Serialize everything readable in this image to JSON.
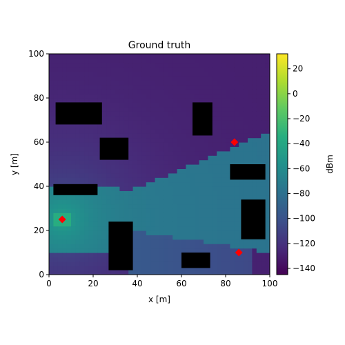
{
  "chart_data": {
    "type": "heatmap",
    "title": "Ground truth",
    "xlabel": "x [m]",
    "ylabel": "y [m]",
    "xlim": [
      0,
      100
    ],
    "ylim": [
      0,
      100
    ],
    "x_ticks": [
      0,
      20,
      40,
      60,
      80,
      100
    ],
    "y_ticks": [
      0,
      20,
      40,
      60,
      80,
      100
    ],
    "grid": false,
    "colorbar": {
      "label": "dBm",
      "colormap": "viridis",
      "range": [
        -145,
        32
      ],
      "ticks": [
        20,
        0,
        -20,
        -40,
        -60,
        -80,
        -100,
        -120,
        -140
      ],
      "tick_labels": [
        "20",
        "0",
        "−20",
        "−40",
        "−60",
        "−80",
        "−100",
        "−120",
        "−140"
      ]
    },
    "transmitter": {
      "x": 6,
      "y": 25,
      "level_dbm": -35
    },
    "background_level_dbm": -130,
    "illuminated_level_dbm": -72,
    "obstacles": [
      {
        "x": [
          3,
          24
        ],
        "y": [
          68,
          78
        ]
      },
      {
        "x": [
          23,
          36
        ],
        "y": [
          52,
          62
        ]
      },
      {
        "x": [
          65,
          74
        ],
        "y": [
          63,
          78
        ]
      },
      {
        "x": [
          82,
          98
        ],
        "y": [
          43,
          50
        ]
      },
      {
        "x": [
          2,
          22
        ],
        "y": [
          36,
          41
        ]
      },
      {
        "x": [
          87,
          98
        ],
        "y": [
          16,
          34
        ]
      },
      {
        "x": [
          27,
          38
        ],
        "y": [
          2,
          24
        ]
      },
      {
        "x": [
          60,
          73
        ],
        "y": [
          3,
          10
        ]
      }
    ],
    "markers": {
      "shape": "diamond",
      "color": "#ff0000",
      "points": [
        {
          "x": 6,
          "y": 25
        },
        {
          "x": 84,
          "y": 60
        },
        {
          "x": 86,
          "y": 10
        }
      ]
    }
  }
}
